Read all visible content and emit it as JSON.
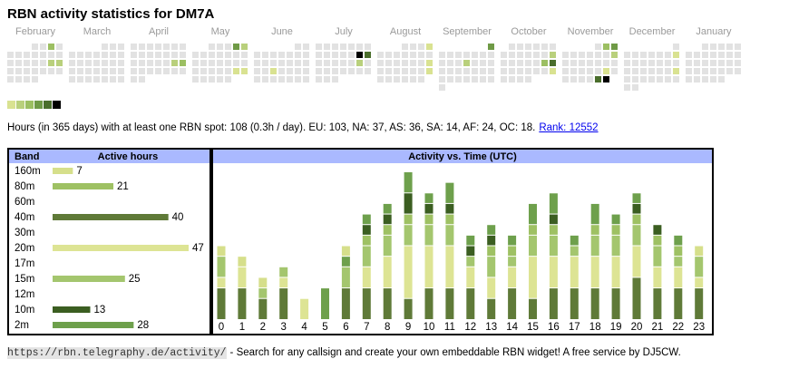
{
  "header": {
    "title": "RBN activity statistics for DM7A"
  },
  "chart_data": [
    {
      "type": "calendar",
      "empty_color": "#e2e2e2",
      "colors": [
        "#d9e291",
        "#b9d07c",
        "#9cbf62",
        "#6f9a46",
        "#4a6e2c",
        "#000000"
      ],
      "months": [
        {
          "name": "February",
          "offset": 3,
          "values": [
            0,
            0,
            3,
            0,
            0,
            0,
            0,
            0,
            0,
            0,
            0,
            0,
            0,
            0,
            0,
            0,
            2,
            2,
            0,
            0,
            0,
            0,
            0,
            0,
            0,
            0,
            0,
            0,
            0
          ]
        },
        {
          "name": "March",
          "offset": 4,
          "values": [
            0,
            0,
            0,
            0,
            0,
            0,
            0,
            0,
            0,
            0,
            0,
            0,
            0,
            0,
            0,
            0,
            0,
            0,
            0,
            0,
            0,
            0,
            0,
            0,
            0,
            0,
            0,
            0,
            0,
            0,
            0
          ]
        },
        {
          "name": "April",
          "offset": 0,
          "values": [
            0,
            0,
            0,
            0,
            0,
            0,
            0,
            0,
            0,
            0,
            0,
            0,
            0,
            0,
            0,
            0,
            0,
            0,
            0,
            2,
            3,
            0,
            0,
            0,
            0,
            0,
            0,
            0,
            0,
            0
          ]
        },
        {
          "name": "May",
          "offset": 2,
          "values": [
            0,
            0,
            0,
            4,
            2,
            0,
            0,
            0,
            0,
            0,
            0,
            0,
            0,
            0,
            0,
            0,
            0,
            0,
            0,
            0,
            0,
            0,
            0,
            0,
            1,
            1,
            0,
            0,
            0,
            0,
            0
          ]
        },
        {
          "name": "June",
          "offset": 5,
          "values": [
            0,
            0,
            0,
            0,
            0,
            0,
            0,
            0,
            0,
            0,
            0,
            0,
            0,
            0,
            0,
            0,
            0,
            0,
            1,
            0,
            0,
            0,
            0,
            0,
            0,
            0,
            0,
            0,
            0,
            0
          ]
        },
        {
          "name": "July",
          "offset": 0,
          "values": [
            0,
            0,
            0,
            0,
            0,
            0,
            0,
            0,
            0,
            0,
            0,
            0,
            6,
            5,
            0,
            0,
            0,
            0,
            0,
            2,
            0,
            0,
            0,
            0,
            0,
            0,
            0,
            0,
            0,
            0,
            0
          ]
        },
        {
          "name": "August",
          "offset": 3,
          "values": [
            0,
            0,
            0,
            1,
            0,
            0,
            0,
            0,
            0,
            0,
            0,
            0,
            0,
            0,
            0,
            0,
            0,
            1,
            0,
            0,
            0,
            0,
            0,
            0,
            1,
            0,
            0,
            0,
            0,
            0,
            0
          ]
        },
        {
          "name": "September",
          "offset": 6,
          "values": [
            4,
            0,
            0,
            0,
            0,
            0,
            0,
            0,
            0,
            0,
            0,
            2,
            0,
            0,
            0,
            0,
            0,
            0,
            0,
            0,
            0,
            0,
            0,
            0,
            0,
            0,
            0,
            0,
            0,
            0
          ]
        },
        {
          "name": "October",
          "offset": 1,
          "values": [
            0,
            0,
            0,
            0,
            0,
            0,
            0,
            0,
            0,
            0,
            0,
            0,
            2,
            0,
            0,
            0,
            0,
            0,
            3,
            5,
            0,
            0,
            0,
            0,
            0,
            0,
            1,
            0,
            0,
            0,
            0
          ]
        },
        {
          "name": "November",
          "offset": 4,
          "values": [
            0,
            3,
            4,
            0,
            0,
            0,
            0,
            0,
            0,
            2,
            0,
            0,
            0,
            0,
            0,
            0,
            0,
            0,
            0,
            0,
            0,
            0,
            1,
            0,
            0,
            0,
            0,
            0,
            5,
            6
          ]
        },
        {
          "name": "December",
          "offset": 6,
          "values": [
            0,
            0,
            0,
            0,
            0,
            0,
            0,
            1,
            0,
            0,
            0,
            0,
            0,
            0,
            0,
            0,
            0,
            0,
            0,
            0,
            0,
            1,
            0,
            0,
            0,
            0,
            0,
            0,
            0,
            0,
            0
          ]
        },
        {
          "name": "January",
          "offset": 2,
          "values": [
            0,
            0,
            0,
            0,
            0,
            0,
            0,
            0,
            0,
            0,
            0,
            0,
            0,
            0,
            0,
            0,
            0,
            0,
            0,
            0,
            0,
            0,
            0,
            0,
            0,
            0,
            0,
            0,
            0,
            0,
            0
          ]
        }
      ]
    },
    {
      "type": "hbar",
      "header": [
        "Band",
        "Active hours"
      ],
      "categories": [
        "160m",
        "80m",
        "60m",
        "40m",
        "30m",
        "20m",
        "17m",
        "15m",
        "12m",
        "10m",
        "2m"
      ],
      "values": [
        7,
        21,
        null,
        40,
        null,
        47,
        null,
        25,
        null,
        13,
        28
      ],
      "colors": [
        "#d6df8b",
        "#9ec163",
        null,
        "#5f7a38",
        null,
        "#dde494",
        null,
        "#a4c66e",
        null,
        "#3b5e21",
        "#6ea04c"
      ]
    },
    {
      "type": "stacked-bar",
      "title": "Activity vs. Time (UTC)",
      "categories": [
        "0",
        "1",
        "2",
        "3",
        "4",
        "5",
        "6",
        "7",
        "8",
        "9",
        "10",
        "11",
        "12",
        "13",
        "14",
        "15",
        "16",
        "17",
        "18",
        "19",
        "20",
        "21",
        "22",
        "23"
      ],
      "ylim": [
        0,
        14
      ],
      "series": [
        {
          "color": "#5f7a38",
          "values": [
            3,
            3,
            2,
            3,
            0,
            0,
            3,
            3,
            3,
            2,
            3,
            3,
            3,
            2,
            3,
            2,
            3,
            3,
            3,
            3,
            4,
            3,
            3,
            3
          ]
        },
        {
          "color": "#dde494",
          "values": [
            1,
            2,
            0,
            1,
            2,
            0,
            0,
            2,
            3,
            5,
            4,
            4,
            2,
            2,
            2,
            4,
            3,
            3,
            3,
            3,
            3,
            2,
            2,
            1
          ]
        },
        {
          "color": "#a4c66e",
          "values": [
            2,
            0,
            1,
            1,
            0,
            0,
            2,
            2,
            2,
            2,
            2,
            2,
            1,
            2,
            1,
            2,
            2,
            1,
            2,
            2,
            2,
            2,
            1,
            2
          ]
        },
        {
          "color": "#9ec163",
          "values": [
            0,
            0,
            0,
            0,
            0,
            0,
            0,
            1,
            1,
            1,
            1,
            1,
            0,
            1,
            1,
            1,
            1,
            0,
            1,
            1,
            1,
            1,
            1,
            0
          ]
        },
        {
          "color": "#3b5e21",
          "values": [
            0,
            0,
            0,
            0,
            0,
            0,
            0,
            1,
            1,
            2,
            1,
            1,
            1,
            1,
            0,
            0,
            1,
            0,
            0,
            0,
            1,
            1,
            0,
            0
          ]
        },
        {
          "color": "#6ea04c",
          "values": [
            0,
            0,
            0,
            0,
            0,
            3,
            1,
            1,
            1,
            2,
            1,
            2,
            1,
            1,
            1,
            2,
            2,
            1,
            2,
            1,
            1,
            0,
            1,
            0
          ]
        },
        {
          "color": "#d6df8b",
          "values": [
            1,
            1,
            1,
            0,
            0,
            0,
            1,
            0,
            0,
            0,
            0,
            0,
            0,
            0,
            0,
            0,
            0,
            0,
            0,
            0,
            0,
            0,
            0,
            1
          ]
        }
      ]
    }
  ],
  "summary": {
    "text": "Hours (in 365 days) with at least one RBN spot: 108 (0.3h / day). EU: 103, NA: 37, AS: 36, SA: 14, AF: 24, OC: 18.",
    "link": "Rank: 12552"
  },
  "footer": {
    "url": "https://rbn.telegraphy.de/activity/",
    "text": "- Search for any callsign and create your own embeddable RBN widget! A free service by DJ5CW."
  }
}
